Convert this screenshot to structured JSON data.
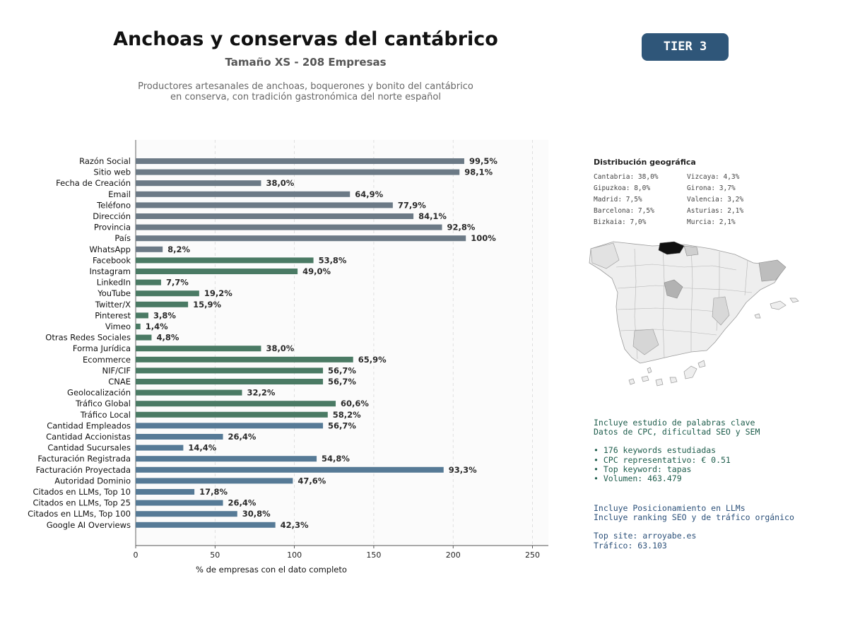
{
  "header": {
    "title": "Anchoas y conservas del cantábrico",
    "subtitle": "Tamaño XS - 208 Empresas",
    "description_line1": "Productores artesanales de anchoas, boquerones y bonito del cantábrico",
    "description_line2": "en conserva, con tradición gastronómica del norte español",
    "tier": "TIER 3"
  },
  "chart_data": {
    "type": "bar",
    "orientation": "horizontal",
    "xlabel": "% de empresas con el dato completo",
    "xlim": [
      0,
      260
    ],
    "xticks": [
      0,
      50,
      100,
      150,
      200,
      250
    ],
    "grid": "vertical-dashed",
    "categories": [
      "Razón Social",
      "Sitio web",
      "Fecha de Creación",
      "Email",
      "Teléfono",
      "Dirección",
      "Provincia",
      "País",
      "WhatsApp",
      "Facebook",
      "Instagram",
      "LinkedIn",
      "YouTube",
      "Twitter/X",
      "Pinterest",
      "Vimeo",
      "Otras Redes Sociales",
      "Forma Jurídica",
      "Ecommerce",
      "NIF/CIF",
      "CNAE",
      "Geolocalización",
      "Tráfico Global",
      "Tráfico Local",
      "Cantidad Empleados",
      "Cantidad Accionistas",
      "Cantidad Sucursales",
      "Facturación Registrada",
      "Facturación Proyectada",
      "Autoridad Dominio",
      "Citados en LLMs, Top 10",
      "Citados en LLMs, Top 25",
      "Citados en LLMs, Top 100",
      "Google AI Overviews"
    ],
    "values": [
      207,
      204,
      79,
      135,
      162,
      175,
      193,
      208,
      17,
      112,
      102,
      16,
      40,
      33,
      8,
      3,
      10,
      79,
      137,
      118,
      118,
      67,
      126,
      121,
      118,
      55,
      30,
      114,
      194,
      99,
      37,
      55,
      64,
      88
    ],
    "labels": [
      "99,5%",
      "98,1%",
      "38,0%",
      "64,9%",
      "77,9%",
      "84,1%",
      "92,8%",
      "100%",
      "8,2%",
      "53,8%",
      "49,0%",
      "7,7%",
      "19,2%",
      "15,9%",
      "3,8%",
      "1,4%",
      "4,8%",
      "38,0%",
      "65,9%",
      "56,7%",
      "56,7%",
      "32,2%",
      "60,6%",
      "58,2%",
      "56,7%",
      "26,4%",
      "14,4%",
      "54,8%",
      "93,3%",
      "47,6%",
      "17,8%",
      "26,4%",
      "30,8%",
      "42,3%"
    ],
    "bar_colors": [
      "#6c7a86",
      "#6c7a86",
      "#6c7a86",
      "#6c7a86",
      "#6c7a86",
      "#6c7a86",
      "#6c7a86",
      "#6c7a86",
      "#6c7a86",
      "#4a7a64",
      "#4a7a64",
      "#4a7a64",
      "#4a7a64",
      "#4a7a64",
      "#4a7a64",
      "#4a7a64",
      "#4a7a64",
      "#4a7a64",
      "#4a7a64",
      "#4a7a64",
      "#4a7a64",
      "#4a7a64",
      "#4a7a64",
      "#4a7a64",
      "#567a96",
      "#567a96",
      "#567a96",
      "#567a96",
      "#567a96",
      "#567a96",
      "#567a96",
      "#567a96",
      "#567a96",
      "#567a96"
    ]
  },
  "geo": {
    "title": "Distribución geográfica",
    "items": [
      "Cantabria: 38,0%",
      "Vizcaya: 4,3%",
      "Gipuzkoa: 8,0%",
      "Girona: 3,7%",
      "Madrid: 7,5%",
      "Valencia: 3,2%",
      "Barcelona: 7,5%",
      "Asturias: 2,1%",
      "Bizkaia: 7,0%",
      "Murcia: 2,1%"
    ]
  },
  "keywords": {
    "line1": "Incluye estudio de palabras clave",
    "line2": "Datos de CPC, dificultad SEO y SEM",
    "bullet1": "• 176 keywords estudiadas",
    "bullet2": "• CPC representativo: € 0.51",
    "bullet3": "• Top keyword: tapas",
    "bullet4": "• Volumen: 463.479"
  },
  "llm": {
    "line1": "Incluye Posicionamiento en LLMs",
    "line2": "Incluye ranking SEO y de tráfico orgánico",
    "top_site": "Top site: arroyabe.es",
    "traffic": "Tráfico: 63.103"
  }
}
